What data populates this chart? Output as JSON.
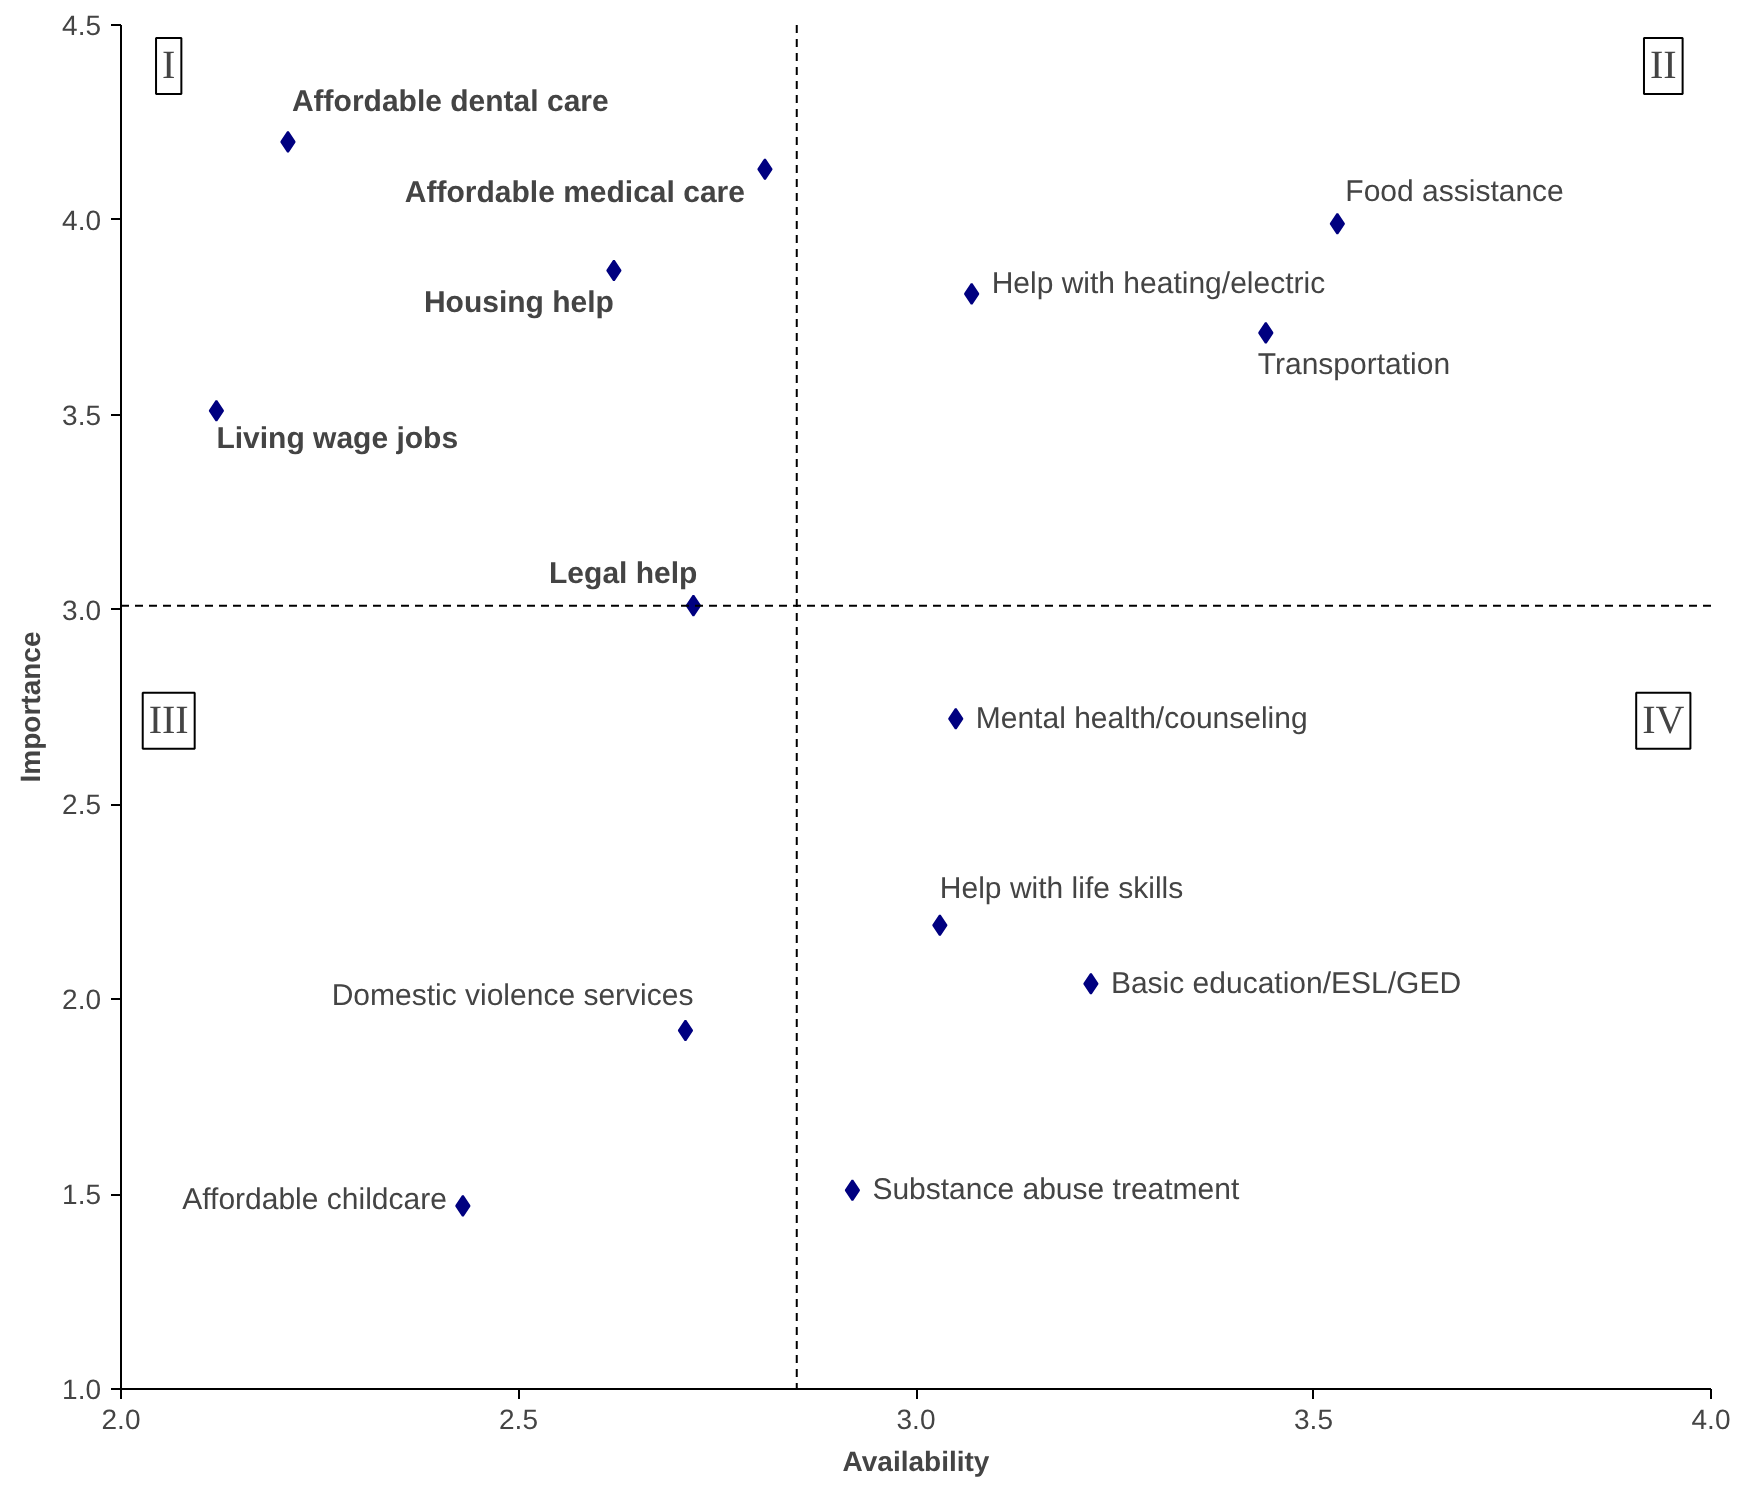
{
  "chart_data": {
    "type": "scatter",
    "xlabel": "Availability",
    "ylabel": "Importance",
    "x": [
      2.21,
      2.81,
      2.62,
      2.12,
      2.72,
      3.53,
      3.07,
      3.44,
      3.05,
      3.03,
      3.22,
      2.71,
      2.43,
      2.92
    ],
    "series": [
      {
        "color": "#000080",
        "values": [
          4.2,
          4.13,
          3.87,
          3.51,
          3.01,
          3.99,
          3.81,
          3.71,
          2.72,
          2.19,
          2.04,
          1.92,
          1.47,
          1.51
        ]
      }
    ],
    "marker": "diamond",
    "grid": false,
    "xlim": [
      2.0,
      4.0
    ],
    "ylim": [
      1.0,
      4.5
    ],
    "xticks": [
      {
        "value": 2.0,
        "label": "2.0"
      },
      {
        "value": 2.5,
        "label": "2.5"
      },
      {
        "value": 3.0,
        "label": "3.0"
      },
      {
        "value": 3.5,
        "label": "3.5"
      },
      {
        "value": 4.0,
        "label": "4.0"
      }
    ],
    "yticks": [
      {
        "value": 1.0,
        "label": "1.0"
      },
      {
        "value": 1.5,
        "label": "1.5"
      },
      {
        "value": 2.0,
        "label": "2.0"
      },
      {
        "value": 2.5,
        "label": "2.5"
      },
      {
        "value": 3.0,
        "label": "3.0"
      },
      {
        "value": 3.5,
        "label": "3.5"
      },
      {
        "value": 4.0,
        "label": "4.0"
      },
      {
        "value": 4.5,
        "label": "4.5"
      }
    ],
    "ref_lines": [
      {
        "axis": "x",
        "value": 2.85,
        "line_style": "dashed",
        "color": "#000000"
      },
      {
        "axis": "y",
        "value": 3.01,
        "line_style": "dashed",
        "color": "#000000"
      }
    ],
    "annotations": [
      {
        "text": "Affordable dental care",
        "x": 2.21,
        "y": 4.2
      },
      {
        "text": "Affordable medical care",
        "x": 2.81,
        "y": 4.13
      },
      {
        "text": "Housing help",
        "x": 2.62,
        "y": 3.87
      },
      {
        "text": "Living wage jobs",
        "x": 2.12,
        "y": 3.51
      },
      {
        "text": "Legal help",
        "x": 2.72,
        "y": 3.01
      },
      {
        "text": "Food assistance",
        "x": 3.53,
        "y": 3.99
      },
      {
        "text": "Help with heating/electric",
        "x": 3.07,
        "y": 3.81
      },
      {
        "text": "Transportation",
        "x": 3.44,
        "y": 3.71
      },
      {
        "text": "Mental health/counseling",
        "x": 3.05,
        "y": 2.72
      },
      {
        "text": "Help with life skills",
        "x": 3.03,
        "y": 2.19
      },
      {
        "text": "Basic education/ESL/GED",
        "x": 3.22,
        "y": 2.04
      },
      {
        "text": "Domestic violence services",
        "x": 2.71,
        "y": 1.92
      },
      {
        "text": "Affordable childcare",
        "x": 2.43,
        "y": 1.47
      },
      {
        "text": "Substance abuse treatment",
        "x": 2.92,
        "y": 1.51
      },
      "I",
      "II",
      "III",
      "IV"
    ]
  }
}
